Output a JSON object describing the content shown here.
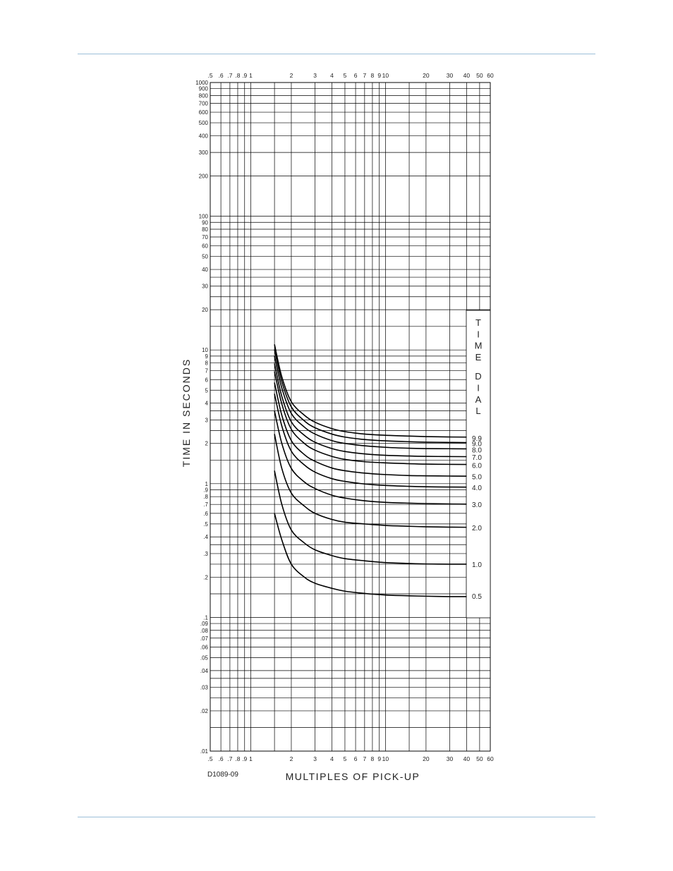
{
  "page": {
    "rule_color": "#9cbfd9"
  },
  "chart_data": {
    "type": "line",
    "xscale": "log",
    "yscale": "log",
    "xlim": [
      0.5,
      60
    ],
    "ylim": [
      0.01,
      1000
    ],
    "grid": true,
    "xlabel": "MULTIPLES OF PICK-UP",
    "ylabel": "TIME IN SECONDS",
    "drawing_number": "D1089-09",
    "legend_title": "TIME DIAL",
    "x_tick_labels": [
      {
        "v": 0.5,
        "t": ".5"
      },
      {
        "v": 0.6,
        "t": ".6"
      },
      {
        "v": 0.7,
        "t": ".7"
      },
      {
        "v": 0.8,
        "t": ".8"
      },
      {
        "v": 0.9,
        "t": ".9"
      },
      {
        "v": 1,
        "t": "1"
      },
      {
        "v": 2,
        "t": "2"
      },
      {
        "v": 3,
        "t": "3"
      },
      {
        "v": 4,
        "t": "4"
      },
      {
        "v": 5,
        "t": "5"
      },
      {
        "v": 6,
        "t": "6"
      },
      {
        "v": 7,
        "t": "7"
      },
      {
        "v": 8,
        "t": "8"
      },
      {
        "v": 9,
        "t": "9"
      },
      {
        "v": 10,
        "t": "10"
      },
      {
        "v": 20,
        "t": "20"
      },
      {
        "v": 30,
        "t": "30"
      },
      {
        "v": 40,
        "t": "40"
      },
      {
        "v": 50,
        "t": "50"
      },
      {
        "v": 60,
        "t": "60"
      }
    ],
    "y_tick_labels": [
      {
        "v": 1000,
        "t": "1000"
      },
      {
        "v": 900,
        "t": "900"
      },
      {
        "v": 800,
        "t": "800"
      },
      {
        "v": 700,
        "t": "700"
      },
      {
        "v": 600,
        "t": "600"
      },
      {
        "v": 500,
        "t": "500"
      },
      {
        "v": 400,
        "t": "400"
      },
      {
        "v": 300,
        "t": "300"
      },
      {
        "v": 200,
        "t": "200"
      },
      {
        "v": 100,
        "t": "100"
      },
      {
        "v": 90,
        "t": "90"
      },
      {
        "v": 80,
        "t": "80"
      },
      {
        "v": 70,
        "t": "70"
      },
      {
        "v": 60,
        "t": "60"
      },
      {
        "v": 50,
        "t": "50"
      },
      {
        "v": 40,
        "t": "40"
      },
      {
        "v": 30,
        "t": "30"
      },
      {
        "v": 20,
        "t": "20"
      },
      {
        "v": 10,
        "t": "10"
      },
      {
        "v": 9,
        "t": "9"
      },
      {
        "v": 8,
        "t": "8"
      },
      {
        "v": 7,
        "t": "7"
      },
      {
        "v": 6,
        "t": "6"
      },
      {
        "v": 5,
        "t": "5"
      },
      {
        "v": 4,
        "t": "4"
      },
      {
        "v": 3,
        "t": "3"
      },
      {
        "v": 2,
        "t": "2"
      },
      {
        "v": 1,
        "t": "1"
      },
      {
        "v": 0.9,
        "t": ".9"
      },
      {
        "v": 0.8,
        "t": ".8"
      },
      {
        "v": 0.7,
        "t": ".7"
      },
      {
        "v": 0.6,
        "t": ".6"
      },
      {
        "v": 0.5,
        "t": ".5"
      },
      {
        "v": 0.4,
        "t": ".4"
      },
      {
        "v": 0.3,
        "t": ".3"
      },
      {
        "v": 0.2,
        "t": ".2"
      },
      {
        "v": 0.1,
        "t": ".1"
      },
      {
        "v": 0.09,
        "t": ".09"
      },
      {
        "v": 0.08,
        "t": ".08"
      },
      {
        "v": 0.07,
        "t": ".07"
      },
      {
        "v": 0.06,
        "t": ".06"
      },
      {
        "v": 0.05,
        "t": ".05"
      },
      {
        "v": 0.04,
        "t": ".04"
      },
      {
        "v": 0.03,
        "t": ".03"
      },
      {
        "v": 0.02,
        "t": ".02"
      },
      {
        "v": 0.01,
        "t": ".01"
      }
    ],
    "x_grid_extra": [
      1.5,
      15
    ],
    "y_grid_extra": [
      15,
      1.5,
      0.15,
      0.015,
      0.035,
      3.5,
      35,
      0.35,
      0.25,
      0.025,
      2.5,
      25
    ],
    "x": [
      1.5,
      1.7,
      2,
      2.5,
      3,
      4,
      5,
      7,
      10,
      15,
      20,
      30,
      40
    ],
    "series": [
      {
        "name": "0.5",
        "label_y": 0.145,
        "values": [
          0.6,
          0.38,
          0.25,
          0.2,
          0.18,
          0.165,
          0.157,
          0.151,
          0.147,
          0.145,
          0.144,
          0.143,
          0.143
        ]
      },
      {
        "name": "1.0",
        "label_y": 0.25,
        "values": [
          1.25,
          0.7,
          0.45,
          0.36,
          0.32,
          0.29,
          0.275,
          0.265,
          0.257,
          0.253,
          0.251,
          0.25,
          0.25
        ]
      },
      {
        "name": "2.0",
        "label_y": 0.47,
        "values": [
          2.35,
          1.3,
          0.85,
          0.68,
          0.6,
          0.54,
          0.515,
          0.5,
          0.487,
          0.48,
          0.476,
          0.473,
          0.472
        ]
      },
      {
        "name": "3.0",
        "label_y": 0.7,
        "values": [
          3.5,
          2.0,
          1.3,
          1.03,
          0.92,
          0.82,
          0.78,
          0.745,
          0.725,
          0.715,
          0.71,
          0.705,
          0.703
        ]
      },
      {
        "name": "4.0",
        "label_y": 0.94,
        "values": [
          4.7,
          2.7,
          1.75,
          1.38,
          1.22,
          1.09,
          1.04,
          0.995,
          0.97,
          0.955,
          0.948,
          0.944,
          0.942
        ]
      },
      {
        "name": "5.0",
        "label_y": 1.13,
        "values": [
          5.7,
          3.25,
          2.1,
          1.65,
          1.47,
          1.31,
          1.25,
          1.2,
          1.17,
          1.15,
          1.145,
          1.14,
          1.138
        ]
      },
      {
        "name": "6.0",
        "label_y": 1.38,
        "values": [
          6.9,
          3.95,
          2.55,
          2.0,
          1.78,
          1.6,
          1.52,
          1.46,
          1.43,
          1.41,
          1.4,
          1.395,
          1.392
        ]
      },
      {
        "name": "7.0",
        "label_y": 1.58,
        "values": [
          7.9,
          4.5,
          2.9,
          2.3,
          2.04,
          1.83,
          1.74,
          1.67,
          1.63,
          1.61,
          1.6,
          1.595,
          1.592
        ]
      },
      {
        "name": "8.0",
        "label_y": 1.8,
        "values": [
          9.0,
          5.2,
          3.35,
          2.65,
          2.35,
          2.1,
          2.0,
          1.92,
          1.87,
          1.84,
          1.83,
          1.825,
          1.822
        ]
      },
      {
        "name": "9.0",
        "label_y": 2.01,
        "values": [
          10.1,
          5.8,
          3.75,
          2.95,
          2.62,
          2.35,
          2.23,
          2.14,
          2.09,
          2.06,
          2.045,
          2.035,
          2.03
        ]
      },
      {
        "name": "9.9",
        "label_y": 2.2,
        "values": [
          11.0,
          6.3,
          4.1,
          3.25,
          2.88,
          2.58,
          2.45,
          2.35,
          2.3,
          2.27,
          2.25,
          2.235,
          2.23
        ]
      }
    ]
  }
}
